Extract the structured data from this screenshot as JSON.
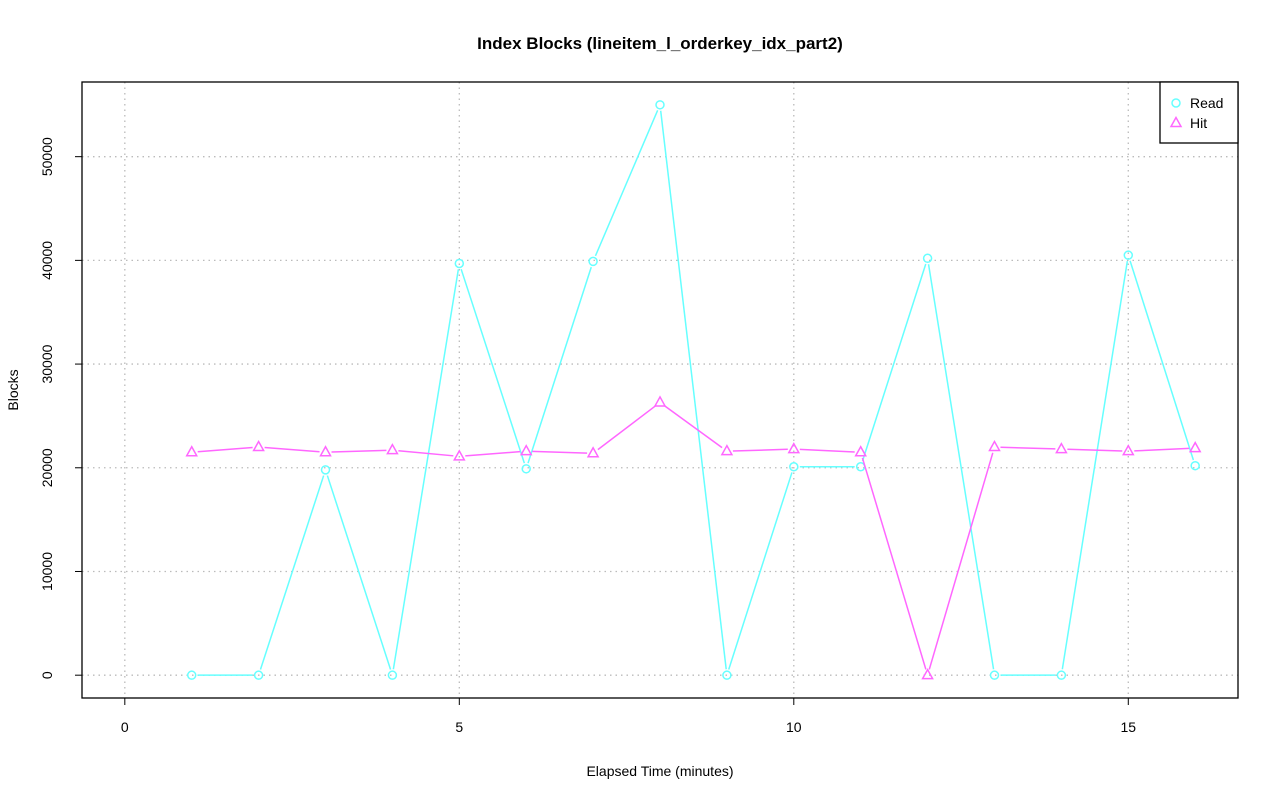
{
  "chart_data": {
    "type": "line",
    "title": "Index Blocks (lineitem_l_orderkey_idx_part2)",
    "xlabel": "Elapsed Time (minutes)",
    "ylabel": "Blocks",
    "xlim": [
      0,
      16
    ],
    "ylim": [
      0,
      55000
    ],
    "xticks": [
      0,
      5,
      10,
      15
    ],
    "yticks": [
      0,
      10000,
      20000,
      30000,
      40000,
      50000
    ],
    "grid": true,
    "legend_position": "top-right",
    "x": [
      1,
      2,
      3,
      4,
      5,
      6,
      7,
      8,
      9,
      10,
      11,
      12,
      13,
      14,
      15,
      16
    ],
    "series": [
      {
        "name": "Read",
        "color": "#66ffff",
        "marker": "circle",
        "values": [
          0,
          0,
          19800,
          0,
          39700,
          19900,
          39900,
          55000,
          0,
          20100,
          20100,
          40200,
          0,
          0,
          40500,
          20200
        ]
      },
      {
        "name": "Hit",
        "color": "#ff66ff",
        "marker": "triangle",
        "values": [
          21500,
          22000,
          21500,
          21700,
          21100,
          21600,
          21400,
          26300,
          21600,
          21800,
          21500,
          0,
          22000,
          21800,
          21600,
          21900
        ]
      }
    ]
  }
}
